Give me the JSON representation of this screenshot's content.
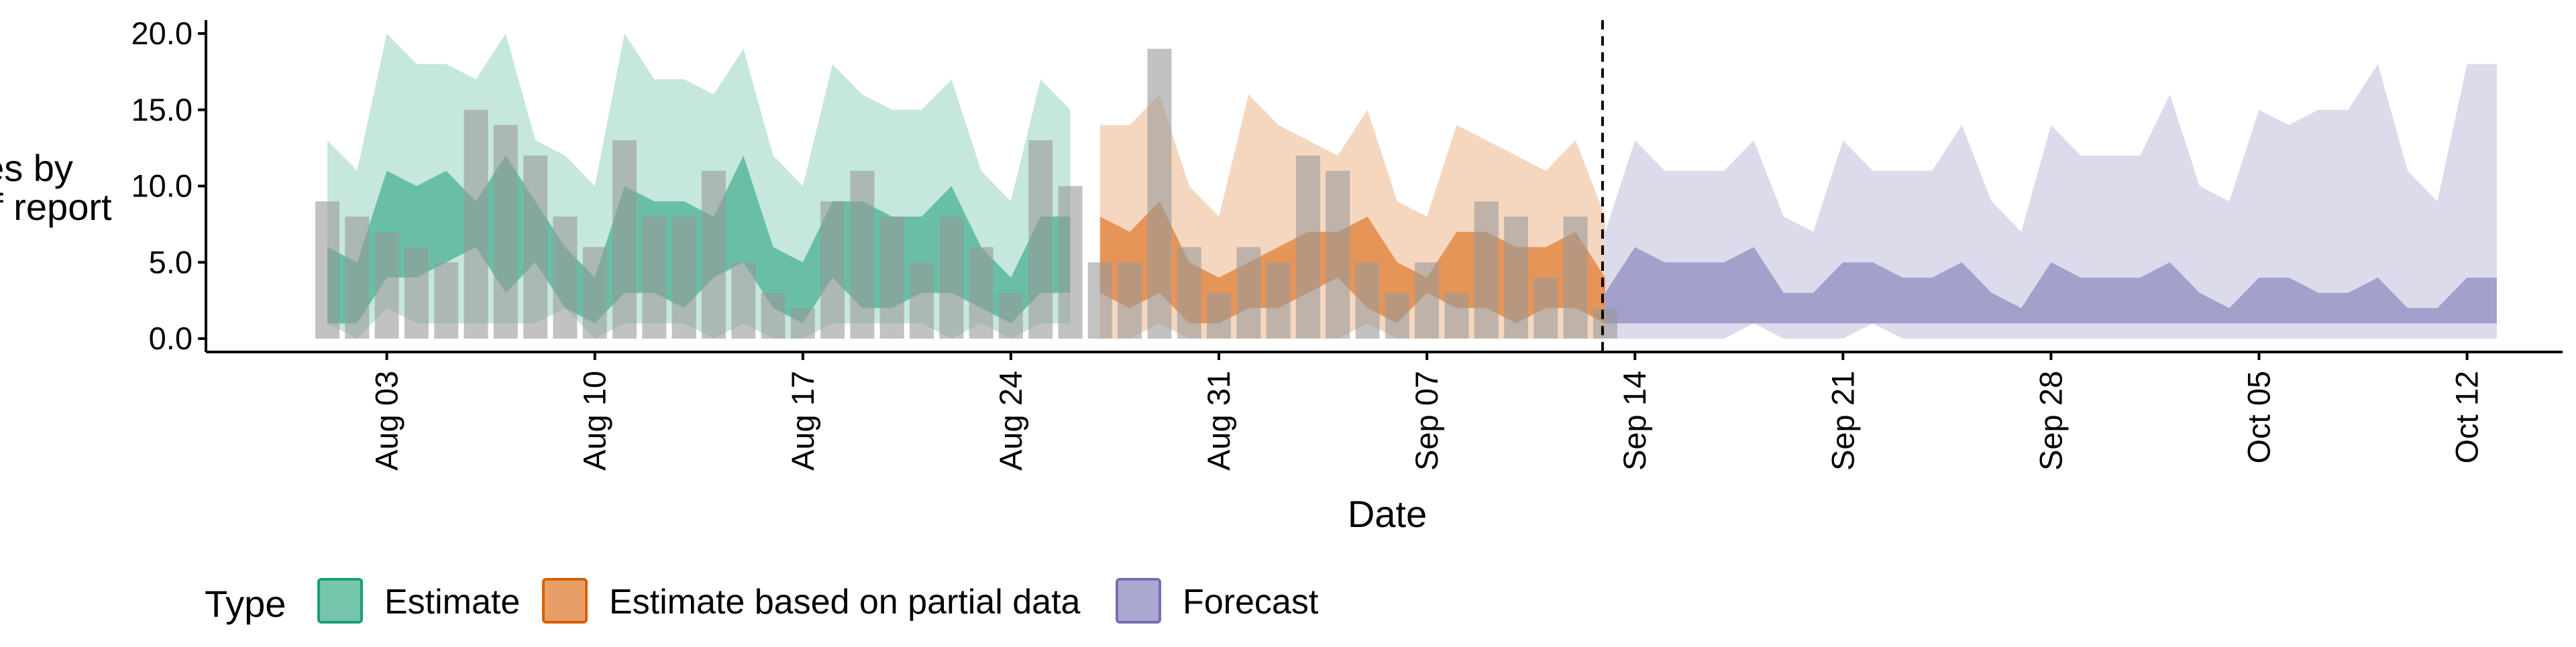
{
  "chart_data": {
    "type": "area",
    "ylabel_lines": [
      "Cases by",
      "date of report"
    ],
    "xlabel": "Date",
    "ylim": [
      0,
      20
    ],
    "y_ticks": [
      "0.0",
      "5.0",
      "10.0",
      "15.0",
      "20.0"
    ],
    "x_ticks": [
      "Aug 03",
      "Aug 10",
      "Aug 17",
      "Aug 24",
      "Aug 31",
      "Sep 07",
      "Sep 14",
      "Sep 21",
      "Sep 28",
      "Oct 05",
      "Oct 12"
    ],
    "x_range": [
      "2021-07-27",
      "2021-10-15"
    ],
    "grid": false,
    "vline_date": "2021-09-13",
    "vline_style": "dashed",
    "bar_color": "#999999",
    "bars": {
      "dates": [
        "2021-08-01",
        "2021-08-02",
        "2021-08-03",
        "2021-08-04",
        "2021-08-05",
        "2021-08-06",
        "2021-08-07",
        "2021-08-08",
        "2021-08-09",
        "2021-08-10",
        "2021-08-11",
        "2021-08-12",
        "2021-08-13",
        "2021-08-14",
        "2021-08-15",
        "2021-08-16",
        "2021-08-17",
        "2021-08-18",
        "2021-08-19",
        "2021-08-20",
        "2021-08-21",
        "2021-08-22",
        "2021-08-23",
        "2021-08-24",
        "2021-08-25",
        "2021-08-26",
        "2021-08-27",
        "2021-08-28",
        "2021-08-29",
        "2021-08-30",
        "2021-08-31",
        "2021-09-01",
        "2021-09-02",
        "2021-09-03",
        "2021-09-04",
        "2021-09-05",
        "2021-09-06",
        "2021-09-07",
        "2021-09-08",
        "2021-09-09",
        "2021-09-10",
        "2021-09-11",
        "2021-09-12",
        "2021-09-13"
      ],
      "values": [
        9,
        8,
        7,
        6,
        5,
        15,
        14,
        12,
        8,
        6,
        13,
        8,
        8,
        11,
        5,
        3,
        2,
        9,
        11,
        8,
        5,
        8,
        6,
        3,
        13,
        10,
        5,
        5,
        19,
        6,
        3,
        6,
        5,
        12,
        11,
        5,
        3,
        5,
        3,
        9,
        8,
        4,
        8,
        2
      ]
    },
    "series": [
      {
        "name": "Estimate",
        "color": "#1b9e77",
        "dates": [
          "2021-08-01",
          "2021-08-02",
          "2021-08-03",
          "2021-08-04",
          "2021-08-05",
          "2021-08-06",
          "2021-08-07",
          "2021-08-08",
          "2021-08-09",
          "2021-08-10",
          "2021-08-11",
          "2021-08-12",
          "2021-08-13",
          "2021-08-14",
          "2021-08-15",
          "2021-08-16",
          "2021-08-17",
          "2021-08-18",
          "2021-08-19",
          "2021-08-20",
          "2021-08-21",
          "2021-08-22",
          "2021-08-23",
          "2021-08-24",
          "2021-08-25",
          "2021-08-26"
        ],
        "lower90": [
          1,
          0,
          2,
          1,
          1,
          1,
          1,
          1,
          2,
          0,
          1,
          1,
          1,
          0,
          1,
          0,
          0,
          1,
          1,
          1,
          1,
          0,
          1,
          0,
          1,
          1
        ],
        "lower50": [
          1,
          1,
          4,
          4,
          5,
          6,
          3,
          5,
          2,
          1,
          3,
          3,
          2,
          4,
          5,
          2,
          1,
          4,
          2,
          2,
          3,
          3,
          2,
          1,
          3,
          3
        ],
        "upper50": [
          6,
          5,
          11,
          10,
          11,
          9,
          12,
          9,
          6,
          4,
          10,
          9,
          9,
          8,
          12,
          6,
          5,
          9,
          9,
          8,
          8,
          10,
          6,
          4,
          8,
          8
        ],
        "upper90": [
          13,
          11,
          20,
          18,
          18,
          17,
          20,
          13,
          12,
          10,
          20,
          17,
          17,
          16,
          19,
          12,
          10,
          18,
          16,
          15,
          15,
          17,
          11,
          9,
          17,
          15
        ]
      },
      {
        "name": "Estimate based on partial data",
        "color": "#d95f02",
        "dates": [
          "2021-08-27",
          "2021-08-28",
          "2021-08-29",
          "2021-08-30",
          "2021-08-31",
          "2021-09-01",
          "2021-09-02",
          "2021-09-03",
          "2021-09-04",
          "2021-09-05",
          "2021-09-06",
          "2021-09-07",
          "2021-09-08",
          "2021-09-09",
          "2021-09-10",
          "2021-09-11",
          "2021-09-12",
          "2021-09-13"
        ],
        "lower90": [
          0,
          0,
          1,
          0,
          0,
          0,
          0,
          0,
          0,
          1,
          0,
          0,
          0,
          0,
          0,
          0,
          0,
          0
        ],
        "lower50": [
          3,
          2,
          3,
          1,
          1,
          2,
          2,
          3,
          4,
          2,
          1,
          3,
          2,
          2,
          1,
          2,
          2,
          1
        ],
        "upper50": [
          8,
          7,
          9,
          5,
          4,
          5,
          6,
          7,
          7,
          8,
          5,
          4,
          7,
          7,
          6,
          6,
          7,
          4
        ],
        "upper90": [
          14,
          14,
          16,
          10,
          8,
          16,
          14,
          13,
          12,
          15,
          9,
          8,
          14,
          13,
          12,
          11,
          13,
          8
        ]
      },
      {
        "name": "Forecast",
        "color": "#7570b3",
        "dates": [
          "2021-09-13",
          "2021-09-14",
          "2021-09-15",
          "2021-09-16",
          "2021-09-17",
          "2021-09-18",
          "2021-09-19",
          "2021-09-20",
          "2021-09-21",
          "2021-09-22",
          "2021-09-23",
          "2021-09-24",
          "2021-09-25",
          "2021-09-26",
          "2021-09-27",
          "2021-09-28",
          "2021-09-29",
          "2021-09-30",
          "2021-10-01",
          "2021-10-02",
          "2021-10-03",
          "2021-10-04",
          "2021-10-05",
          "2021-10-06",
          "2021-10-07",
          "2021-10-08",
          "2021-10-09",
          "2021-10-10",
          "2021-10-11",
          "2021-10-12",
          "2021-10-13"
        ],
        "lower90": [
          0,
          0,
          0,
          0,
          0,
          1,
          0,
          0,
          0,
          1,
          0,
          0,
          0,
          0,
          0,
          0,
          0,
          0,
          0,
          0,
          0,
          0,
          0,
          0,
          0,
          0,
          0,
          0,
          0,
          0,
          0
        ],
        "lower50": [
          1,
          1,
          1,
          1,
          1,
          1,
          1,
          1,
          1,
          1,
          1,
          1,
          1,
          1,
          1,
          1,
          1,
          1,
          1,
          1,
          1,
          1,
          1,
          1,
          1,
          1,
          1,
          1,
          1,
          1,
          1
        ],
        "upper50": [
          3,
          6,
          5,
          5,
          5,
          6,
          3,
          3,
          5,
          5,
          4,
          4,
          5,
          3,
          2,
          5,
          4,
          4,
          4,
          5,
          3,
          2,
          4,
          4,
          3,
          3,
          4,
          2,
          2,
          4,
          4
        ],
        "upper90": [
          7,
          13,
          11,
          11,
          11,
          13,
          8,
          7,
          13,
          11,
          11,
          11,
          14,
          9,
          7,
          14,
          12,
          12,
          12,
          16,
          10,
          9,
          15,
          14,
          15,
          15,
          18,
          11,
          9,
          18,
          18
        ]
      }
    ],
    "legend": {
      "title": "Type",
      "position": "bottom-left",
      "items": [
        "Estimate",
        "Estimate based on partial data",
        "Forecast"
      ]
    }
  }
}
